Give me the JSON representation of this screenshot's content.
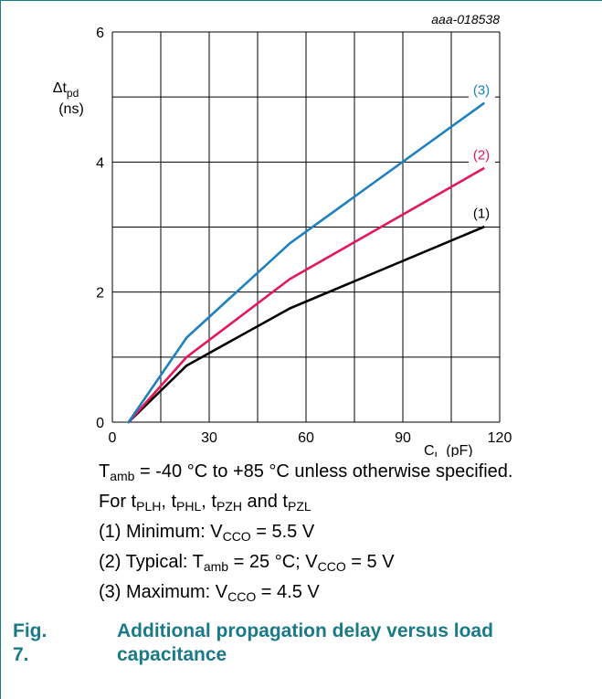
{
  "figure_id": "aaa-018538",
  "chart_data": {
    "type": "line",
    "xlabel": "C",
    "xlabel_sub": "L",
    "xlabel_unit": "(pF)",
    "ylabel": "Δt",
    "ylabel_sub": "pd",
    "ylabel_unit": "(ns)",
    "xlim": [
      0,
      120
    ],
    "ylim": [
      0,
      6
    ],
    "x_ticks": [
      0,
      30,
      60,
      90,
      120
    ],
    "y_ticks": [
      0,
      2,
      4,
      6
    ],
    "grid": true,
    "series": [
      {
        "label": "(1)",
        "color": "#000000",
        "x": [
          5,
          23,
          55,
          115
        ],
        "y": [
          0,
          0.87,
          1.75,
          3.0
        ]
      },
      {
        "label": "(2)",
        "color": "#e2185b",
        "x": [
          5,
          23,
          55,
          115
        ],
        "y": [
          0,
          1.0,
          2.2,
          3.9
        ]
      },
      {
        "label": "(3)",
        "color": "#1f80c0",
        "x": [
          5,
          23,
          55,
          115
        ],
        "y": [
          0,
          1.3,
          2.75,
          4.9
        ]
      }
    ]
  },
  "notes": {
    "line1": {
      "t": "T",
      "t_sub": "amb",
      "rest": " = -40 °C to +85 °C unless otherwise specified."
    },
    "line2": {
      "pre": "For t",
      "s1": "PLH",
      "c1": ", t",
      "s2": "PHL",
      "c2": ", t",
      "s3": "PZH",
      "c3": " and t",
      "s4": "PZL"
    },
    "line3": {
      "pre": "(1) Minimum: V",
      "sub": "CCO",
      "post": " = 5.5 V"
    },
    "line4": {
      "pre": "(2) Typical: T",
      "sub1": "amb",
      "mid": " = 25 °C; V",
      "sub2": "CCO",
      "post": " = 5 V"
    },
    "line5": {
      "pre": "(3) Maximum: V",
      "sub": "CCO",
      "post": " = 4.5 V"
    }
  },
  "caption": {
    "number": "Fig. 7.",
    "text": "Additional propagation delay versus load capacitance"
  }
}
